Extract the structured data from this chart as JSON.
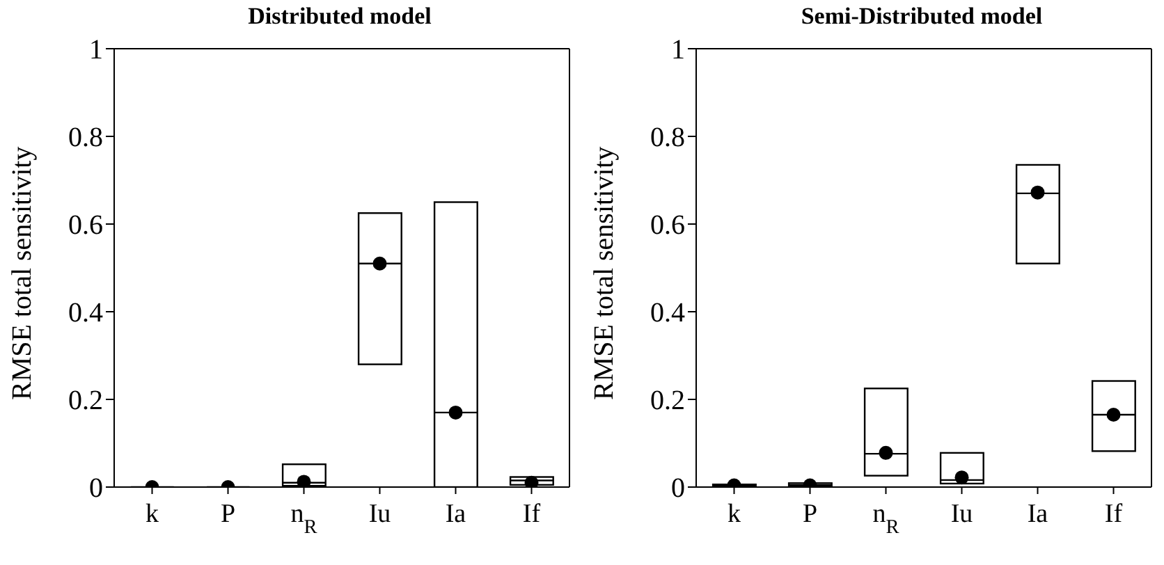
{
  "chart_data": [
    {
      "type": "box",
      "title": "Distributed model",
      "ylabel": "RMSE total sensitivity",
      "categories": [
        "k",
        "P",
        "n$_{R}$",
        "Iu",
        "Ia",
        "If"
      ],
      "ylim": [
        0,
        1
      ],
      "yticks": [
        0,
        0.2,
        0.4,
        0.6,
        0.8,
        1
      ],
      "boxes": [
        {
          "low": 0,
          "q1": 0,
          "median": 0,
          "q3": 0,
          "high": 0,
          "mean": 0
        },
        {
          "low": 0,
          "q1": 0,
          "median": 0,
          "q3": 0,
          "high": 0,
          "mean": 0
        },
        {
          "low": 0.003,
          "q1": 0.003,
          "median": 0.01,
          "q3": 0.052,
          "high": 0.052,
          "mean": 0.012
        },
        {
          "low": 0.28,
          "q1": 0.28,
          "median": 0.51,
          "q3": 0.625,
          "high": 0.625,
          "mean": 0.51
        },
        {
          "low": 0,
          "q1": 0,
          "median": 0.17,
          "q3": 0.65,
          "high": 0.65,
          "mean": 0.17
        },
        {
          "low": 0.005,
          "q1": 0.005,
          "median": 0.015,
          "q3": 0.023,
          "high": 0.023,
          "mean": 0.01
        }
      ]
    },
    {
      "type": "box",
      "title": "Semi-Distributed model",
      "ylabel": "RMSE total sensitivity",
      "categories": [
        "k",
        "P",
        "n$_{R}$",
        "Iu",
        "Ia",
        "If"
      ],
      "ylim": [
        0,
        1
      ],
      "yticks": [
        0,
        0.2,
        0.4,
        0.6,
        0.8,
        1
      ],
      "boxes": [
        {
          "low": 0.002,
          "q1": 0.002,
          "median": 0.004,
          "q3": 0.006,
          "high": 0.006,
          "mean": 0.004
        },
        {
          "low": 0.002,
          "q1": 0.002,
          "median": 0.005,
          "q3": 0.009,
          "high": 0.009,
          "mean": 0.004
        },
        {
          "low": 0.026,
          "q1": 0.026,
          "median": 0.076,
          "q3": 0.225,
          "high": 0.225,
          "mean": 0.078
        },
        {
          "low": 0.008,
          "q1": 0.008,
          "median": 0.016,
          "q3": 0.078,
          "high": 0.078,
          "mean": 0.022
        },
        {
          "low": 0.51,
          "q1": 0.51,
          "median": 0.67,
          "q3": 0.735,
          "high": 0.735,
          "mean": 0.672
        },
        {
          "low": 0.082,
          "q1": 0.082,
          "median": 0.165,
          "q3": 0.242,
          "high": 0.242,
          "mean": 0.165
        }
      ]
    }
  ]
}
